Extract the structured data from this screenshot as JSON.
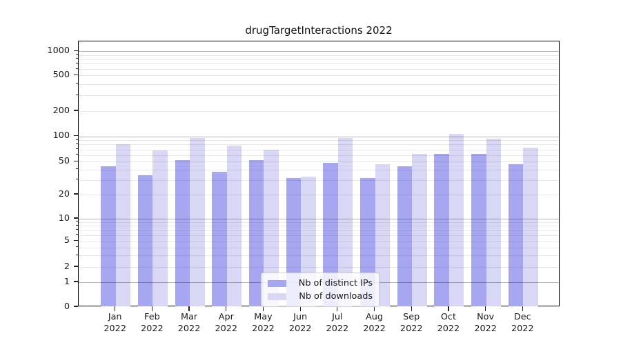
{
  "figure": {
    "title": "drugTargetInteractions 2022"
  },
  "chart_data": {
    "type": "bar",
    "title": "drugTargetInteractions 2022",
    "categories": [
      "Jan 2022",
      "Feb 2022",
      "Mar 2022",
      "Apr 2022",
      "May 2022",
      "Jun 2022",
      "Jul 2022",
      "Aug 2022",
      "Sep 2022",
      "Oct 2022",
      "Nov 2022",
      "Dec 2022"
    ],
    "months": [
      "Jan",
      "Feb",
      "Mar",
      "Apr",
      "May",
      "Jun",
      "Jul",
      "Aug",
      "Sep",
      "Oct",
      "Nov",
      "Dec"
    ],
    "year": "2022",
    "series": [
      {
        "name": "Nb of distinct IPs",
        "color": "#a6a6f1",
        "values": [
          44,
          34,
          52,
          38,
          52,
          32,
          48,
          32,
          44,
          62,
          62,
          47
        ]
      },
      {
        "name": "Nb of downloads",
        "color": "#d8d8f6",
        "values": [
          80,
          68,
          96,
          78,
          70,
          33,
          96,
          47,
          62,
          108,
          94,
          74
        ]
      }
    ],
    "xlabel": "",
    "ylabel": "",
    "yscale": "symlog",
    "ytick_values": [
      0,
      1,
      2,
      5,
      10,
      20,
      50,
      100,
      200,
      500,
      1000
    ],
    "ytick_labels": [
      "0",
      "1",
      "2",
      "5",
      "10",
      "20",
      "50",
      "100",
      "200",
      "500",
      "1000"
    ],
    "ylim": [
      0,
      1400
    ],
    "grid": "on",
    "legend_position": "lower center",
    "colors": {
      "bar_dark": "#a6a6f1",
      "bar_light": "#d8d8f6",
      "major_grid": "#b3b3b3",
      "minor_grid": "#e9e9e9",
      "spine": "#000000",
      "text": "#1a1a1a",
      "legend_border": "#cccccc",
      "legend_bg": "rgba(255,255,255,0.8)"
    }
  }
}
